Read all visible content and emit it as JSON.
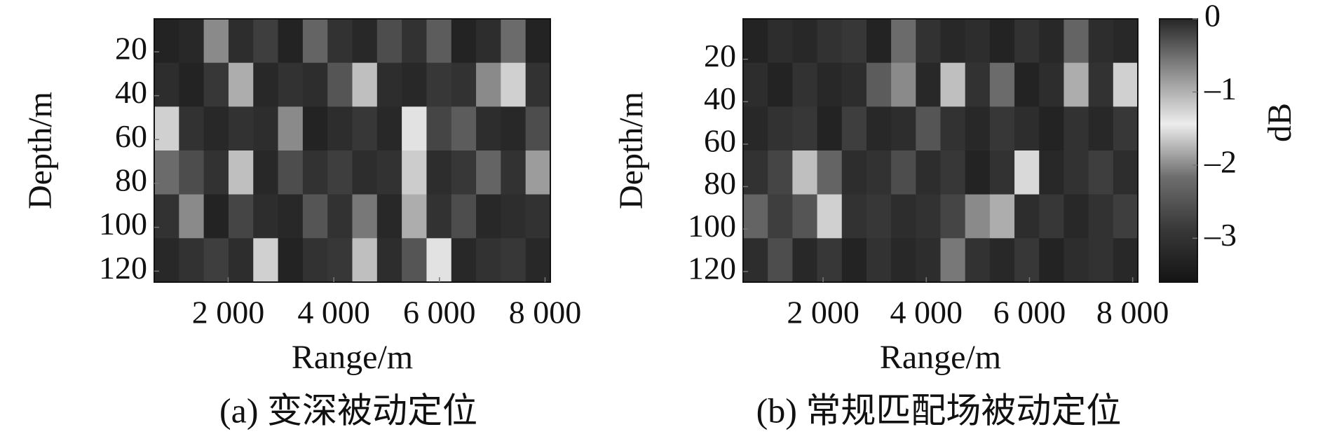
{
  "chart_data": [
    {
      "type": "heatmap",
      "caption": "(a) 变深被动定位",
      "xlabel": "Range/m",
      "ylabel": "Depth/m",
      "xlim": [
        600,
        8100
      ],
      "xticks": [
        {
          "value": 2000,
          "label": "2 000"
        },
        {
          "value": 4000,
          "label": "4 000"
        },
        {
          "value": 6000,
          "label": "6 000"
        },
        {
          "value": 8000,
          "label": "8 000"
        }
      ],
      "ylim": [
        5,
        125
      ],
      "yreverse": true,
      "yticks": [
        20,
        40,
        60,
        80,
        100,
        120
      ],
      "clim": [
        -3.6,
        0
      ],
      "colormap": [
        "#141414",
        "#383838",
        "#6e6e6e",
        "#ececec",
        "#8c8c8c",
        "#262626"
      ],
      "z": [
        [
          -3.3,
          -3.2,
          -2.0,
          -3.1,
          -2.8,
          -3.3,
          -2.3,
          -3.0,
          -3.2,
          -2.6,
          -3.0,
          -2.4,
          -3.3,
          -3.1,
          -2.2,
          -3.3
        ],
        [
          -3.1,
          -3.3,
          -2.9,
          -1.8,
          -3.2,
          -3.0,
          -3.1,
          -2.5,
          -1.7,
          -3.1,
          -3.2,
          -2.9,
          -3.0,
          -2.0,
          -1.6,
          -3.0
        ],
        [
          -1.6,
          -3.0,
          -3.2,
          -3.0,
          -3.1,
          -2.0,
          -3.3,
          -3.1,
          -2.9,
          -3.2,
          -1.5,
          -2.7,
          -2.4,
          -3.1,
          -3.2,
          -2.6
        ],
        [
          -2.2,
          -2.6,
          -3.0,
          -1.7,
          -3.2,
          -2.6,
          -3.0,
          -2.8,
          -3.1,
          -3.0,
          -1.2,
          -3.1,
          -2.9,
          -2.3,
          -3.0,
          -1.9
        ],
        [
          -3.0,
          -2.0,
          -3.3,
          -2.7,
          -3.1,
          -3.2,
          -2.5,
          -3.0,
          -2.1,
          -3.2,
          -1.8,
          -3.0,
          -2.6,
          -3.2,
          -3.1,
          -3.0
        ],
        [
          -3.2,
          -3.0,
          -2.8,
          -3.1,
          -1.6,
          -3.3,
          -3.0,
          -2.9,
          -1.7,
          -3.1,
          -2.5,
          -1.5,
          -3.2,
          -3.0,
          -2.9,
          -3.2
        ]
      ]
    },
    {
      "type": "heatmap",
      "caption": "(b) 常规匹配场被动定位",
      "xlabel": "Range/m",
      "ylabel": "Depth/m",
      "xlim": [
        450,
        8100
      ],
      "xticks": [
        {
          "value": 2000,
          "label": "2 000"
        },
        {
          "value": 4000,
          "label": "4 000"
        },
        {
          "value": 6000,
          "label": "6 000"
        },
        {
          "value": 8000,
          "label": "8 000"
        }
      ],
      "ylim": [
        1,
        125
      ],
      "yreverse": true,
      "yticks": [
        20,
        40,
        60,
        80,
        100,
        120
      ],
      "clim": [
        -3.6,
        0
      ],
      "colormap": [
        "#141414",
        "#383838",
        "#6e6e6e",
        "#ececec",
        "#8c8c8c",
        "#262626"
      ],
      "colorbar": {
        "label": "dB",
        "ticks": [
          0,
          {
            "value": -1,
            "label": "–1"
          },
          {
            "value": -2,
            "label": "–2"
          },
          {
            "value": -3,
            "label": "–3"
          }
        ]
      },
      "z": [
        [
          -3.3,
          -3.1,
          -3.2,
          -3.0,
          -2.9,
          -3.3,
          -2.2,
          -3.0,
          -3.2,
          -3.1,
          -3.3,
          -3.0,
          -3.2,
          -2.3,
          -3.1,
          -3.2
        ],
        [
          -3.1,
          -3.3,
          -3.0,
          -3.2,
          -3.1,
          -2.4,
          -2.0,
          -3.2,
          -1.7,
          -3.0,
          -2.2,
          -3.3,
          -3.1,
          -1.8,
          -3.0,
          -1.6
        ],
        [
          -3.2,
          -3.0,
          -2.9,
          -3.3,
          -2.8,
          -3.2,
          -3.1,
          -2.5,
          -3.0,
          -3.2,
          -2.9,
          -3.1,
          -3.3,
          -3.0,
          -3.2,
          -2.9
        ],
        [
          -3.0,
          -2.7,
          -1.7,
          -2.3,
          -3.1,
          -3.0,
          -2.6,
          -3.1,
          -2.9,
          -3.3,
          -3.0,
          -1.3,
          -3.2,
          -3.0,
          -2.8,
          -3.1
        ],
        [
          -2.3,
          -2.8,
          -2.5,
          -1.6,
          -3.0,
          -2.9,
          -3.1,
          -3.0,
          -2.7,
          -2.0,
          -1.8,
          -3.1,
          -2.9,
          -3.2,
          -3.0,
          -2.8
        ],
        [
          -3.1,
          -2.6,
          -3.2,
          -2.9,
          -3.3,
          -3.0,
          -3.2,
          -3.1,
          -2.1,
          -3.0,
          -3.2,
          -2.9,
          -3.3,
          -3.1,
          -3.0,
          -3.2
        ]
      ]
    }
  ]
}
